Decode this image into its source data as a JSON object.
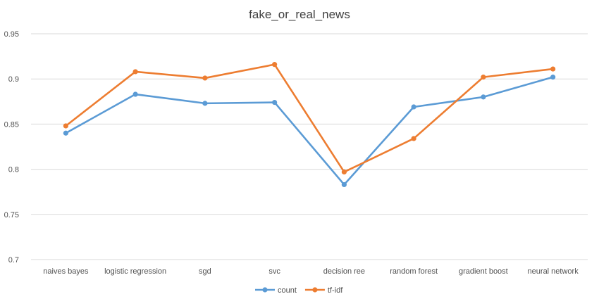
{
  "chart_data": {
    "type": "line",
    "title": "fake_or_real_news",
    "xlabel": "",
    "ylabel": "",
    "categories": [
      "naives bayes",
      "logistic regression",
      "sgd",
      "svc",
      "decision ree",
      "random forest",
      "gradient boost",
      "neural network"
    ],
    "series": [
      {
        "name": "count",
        "color": "#5b9bd5",
        "values": [
          0.84,
          0.883,
          0.873,
          0.874,
          0.783,
          0.869,
          0.88,
          0.902
        ]
      },
      {
        "name": "tf-idf",
        "color": "#ed7d31",
        "values": [
          0.848,
          0.908,
          0.901,
          0.916,
          0.797,
          0.834,
          0.902,
          0.911
        ]
      }
    ],
    "ylim": [
      0.7,
      0.95
    ],
    "yticks": [
      "0.7",
      "0.75",
      "0.8",
      "0.85",
      "0.9",
      "0.95"
    ],
    "grid": true,
    "legend_position": "bottom"
  }
}
